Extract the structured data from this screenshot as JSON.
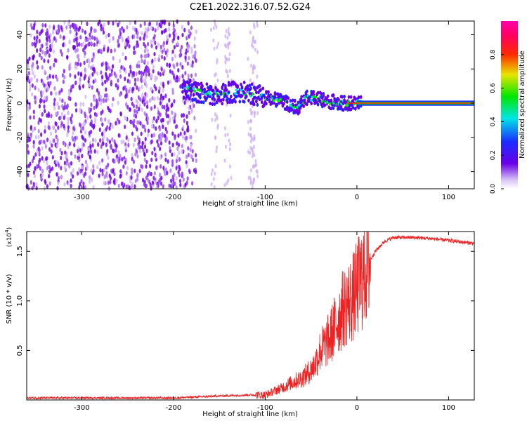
{
  "title": "C2E1.2022.316.07.52.G24",
  "colors": {
    "snr_line": "#ee2222",
    "spectro_noise": "#6a00e8",
    "axis": "#000000"
  },
  "chart_data": [
    {
      "type": "heatmap",
      "name": "spectrogram",
      "xlabel": "Height of straight line (km)",
      "ylabel": "Frequency (Hz)",
      "xlim": [
        -360,
        128
      ],
      "ylim": [
        -50,
        48
      ],
      "xticks": [
        -300,
        -200,
        -100,
        0,
        100
      ],
      "xtick_labels": [
        "-300",
        "-200",
        "-100",
        "0",
        "100"
      ],
      "yticks": [
        -40,
        -20,
        0,
        20,
        40
      ],
      "ytick_labels": [
        "-40",
        "-20",
        "0",
        "20",
        "40"
      ],
      "colorbar": {
        "label": "Normalized spectral amplitude",
        "range": [
          0,
          1
        ],
        "ticks": [
          0.0,
          0.2,
          0.4,
          0.6,
          0.8
        ],
        "tick_labels": [
          "0.0",
          "0.2",
          "0.4",
          "0.6",
          "0.8"
        ],
        "colormap": "rainbow (white-purple-blue-cyan-green-yellow-red-magenta)"
      },
      "ridge": {
        "description": "signal ridge frequency vs height",
        "x": [
          -190,
          -170,
          -150,
          -130,
          -110,
          -95,
          -80,
          -65,
          -55,
          -45,
          -30,
          -15,
          0,
          10,
          128
        ],
        "y": [
          9,
          6,
          5,
          7,
          5,
          3,
          1,
          -3,
          3,
          3,
          1,
          0,
          0,
          0,
          0
        ]
      },
      "noise_region": {
        "x_from": -360,
        "x_to": -175,
        "level": "low amplitude, broadband"
      }
    },
    {
      "type": "line",
      "name": "snr",
      "xlabel": "Height of straight line (km)",
      "ylabel": "SNR (10 * v/v)",
      "multiplier": "(x10",
      "multiplier_exp": "4",
      "multiplier_close": ")",
      "xlim": [
        -360,
        128
      ],
      "ylim": [
        0,
        1.7
      ],
      "xticks": [
        -300,
        -200,
        -100,
        0,
        100
      ],
      "xtick_labels": [
        "-300",
        "-200",
        "-100",
        "0",
        "100"
      ],
      "yticks": [
        0.5,
        1.0,
        1.5
      ],
      "ytick_labels": [
        "0.5",
        "1.0",
        "1.5"
      ],
      "series": [
        {
          "x": [
            -360,
            -300,
            -250,
            -200,
            -150,
            -120,
            -100,
            -90,
            -80,
            -70,
            -60,
            -50,
            -45,
            -40,
            -35,
            -30,
            -25,
            -20,
            -15,
            -10,
            -5,
            0,
            5,
            10,
            20,
            30,
            40,
            60,
            80,
            100,
            128
          ],
          "y": [
            0.02,
            0.02,
            0.02,
            0.02,
            0.04,
            0.05,
            0.05,
            0.09,
            0.13,
            0.18,
            0.22,
            0.3,
            0.38,
            0.5,
            0.55,
            0.62,
            0.72,
            0.82,
            0.92,
            0.98,
            1.02,
            1.12,
            1.22,
            1.34,
            1.5,
            1.6,
            1.64,
            1.64,
            1.63,
            1.61,
            1.58
          ]
        }
      ]
    }
  ]
}
